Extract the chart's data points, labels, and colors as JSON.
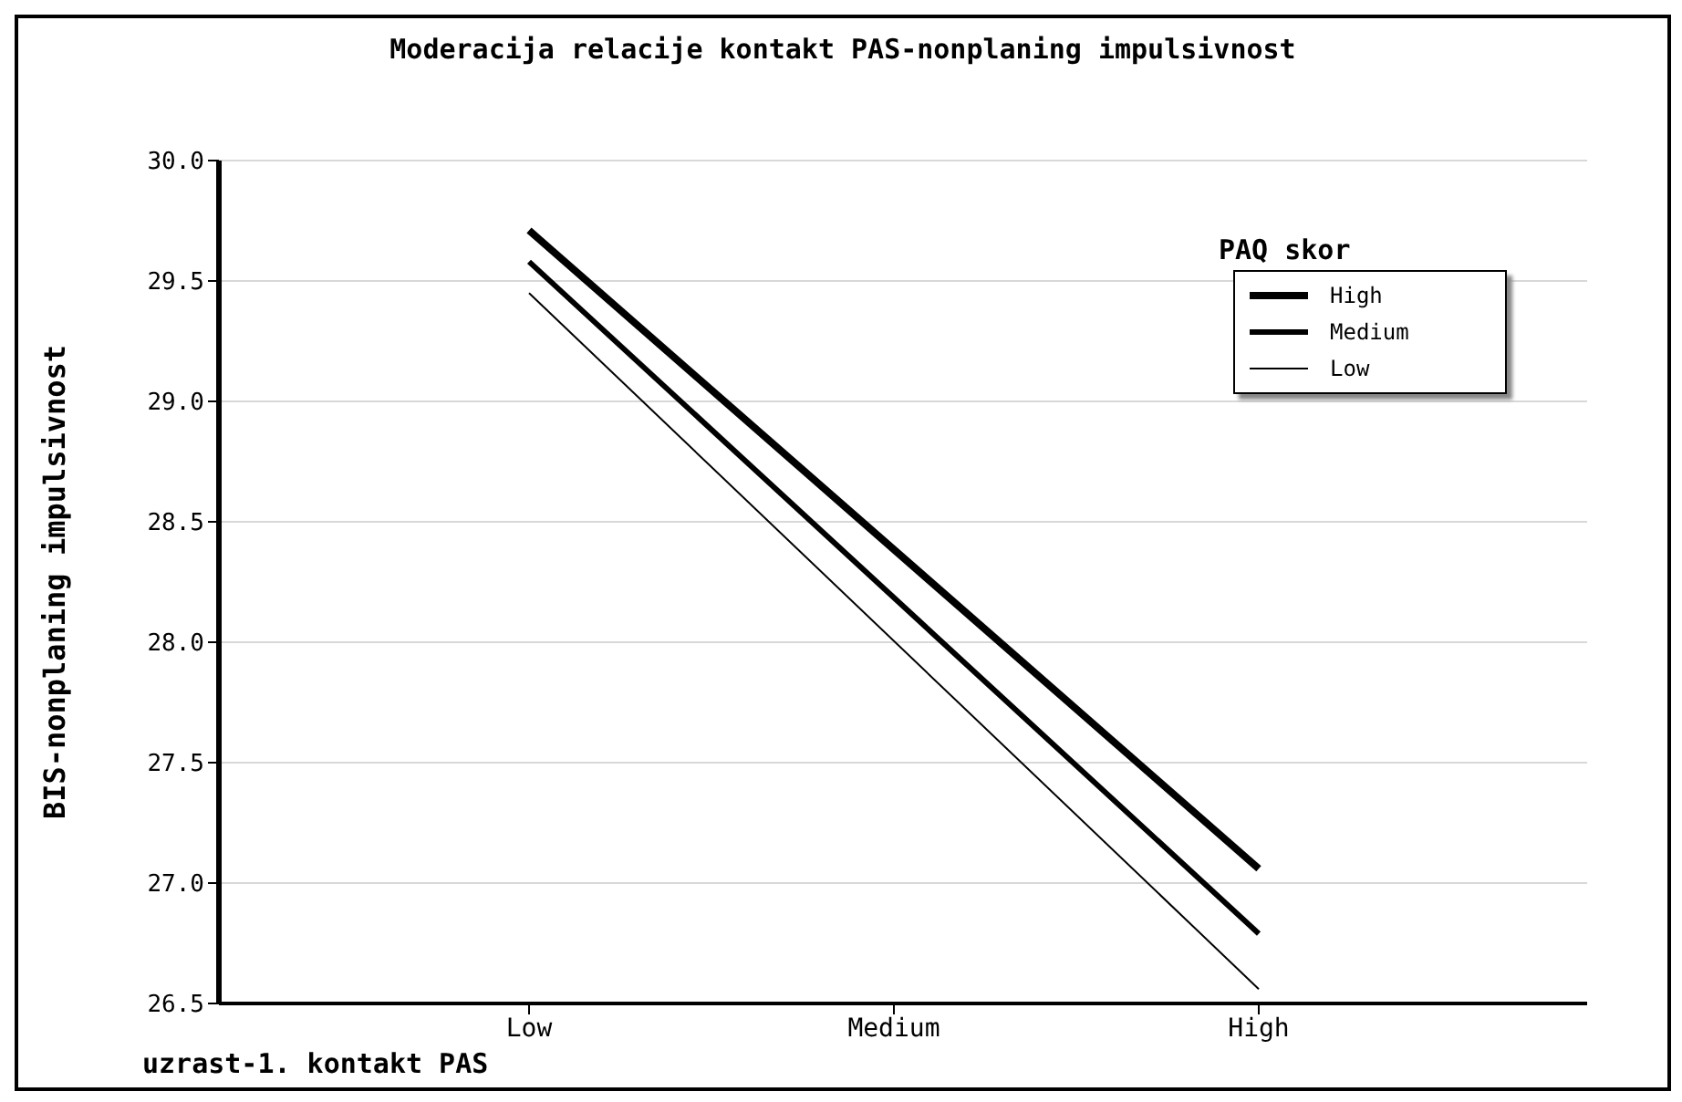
{
  "chart_data": {
    "type": "line",
    "title": "Moderacija relacije kontakt PAS-nonplaning impulsivnost",
    "xlabel": "uzrast-1. kontakt PAS",
    "ylabel": "BIS-nonplaning impulsivnost",
    "legend_title": "PAQ skor",
    "categories": [
      "Low",
      "Medium",
      "High"
    ],
    "series": [
      {
        "name": "High",
        "color": "#000000",
        "values": [
          29.71,
          null,
          27.06
        ]
      },
      {
        "name": "Medium",
        "color": "#000000",
        "values": [
          29.58,
          null,
          26.79
        ]
      },
      {
        "name": "Low",
        "color": "#000000",
        "values": [
          29.45,
          null,
          26.56
        ]
      }
    ],
    "ylim": [
      26.5,
      30.0
    ],
    "yticks": [
      {
        "value": 26.5,
        "label": "26.5"
      },
      {
        "value": 27.0,
        "label": "27.0"
      },
      {
        "value": 27.5,
        "label": "27.5"
      },
      {
        "value": 28.0,
        "label": "28.0"
      },
      {
        "value": 28.5,
        "label": "28.5"
      },
      {
        "value": 29.0,
        "label": "29.0"
      },
      {
        "value": 29.5,
        "label": "29.5"
      },
      {
        "value": 30.0,
        "label": "30.0"
      }
    ],
    "grid": "y",
    "legend": "top right",
    "marker": "none",
    "line_style": "solid"
  }
}
